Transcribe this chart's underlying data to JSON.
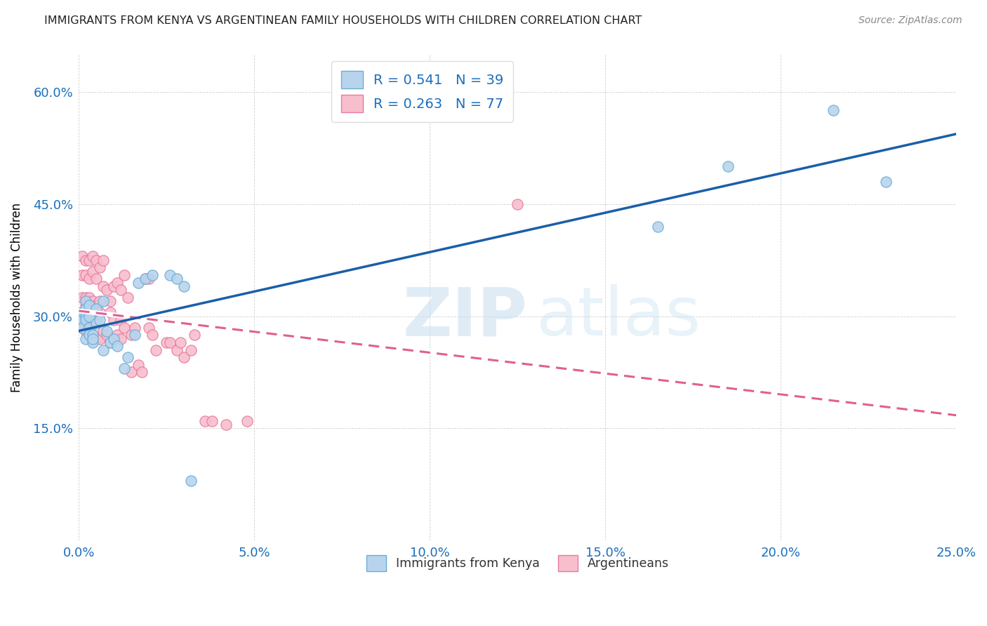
{
  "title": "IMMIGRANTS FROM KENYA VS ARGENTINEAN FAMILY HOUSEHOLDS WITH CHILDREN CORRELATION CHART",
  "source": "Source: ZipAtlas.com",
  "xlim": [
    0.0,
    0.25
  ],
  "ylim": [
    0.0,
    0.65
  ],
  "watermark_zip": "ZIP",
  "watermark_atlas": "atlas",
  "legend_r1": "0.541",
  "legend_n1": "39",
  "legend_r2": "0.263",
  "legend_n2": "77",
  "color_kenya_fill": "#b8d4ed",
  "color_kenya_edge": "#6aaed6",
  "color_argentina_fill": "#f7bfce",
  "color_argentina_edge": "#e87a9f",
  "color_kenya_line": "#1a5fa8",
  "color_argentina_line": "#e06090",
  "ylabel": "Family Households with Children",
  "legend_label1": "Immigrants from Kenya",
  "legend_label2": "Argentineans",
  "kenya_x": [
    0.001,
    0.001,
    0.001,
    0.001,
    0.002,
    0.002,
    0.002,
    0.002,
    0.002,
    0.003,
    0.003,
    0.003,
    0.003,
    0.004,
    0.004,
    0.004,
    0.005,
    0.005,
    0.006,
    0.007,
    0.007,
    0.008,
    0.009,
    0.01,
    0.011,
    0.013,
    0.014,
    0.016,
    0.017,
    0.019,
    0.021,
    0.026,
    0.028,
    0.03,
    0.032,
    0.165,
    0.185,
    0.215,
    0.23
  ],
  "kenya_y": [
    0.305,
    0.3,
    0.295,
    0.285,
    0.32,
    0.31,
    0.3,
    0.295,
    0.27,
    0.315,
    0.3,
    0.285,
    0.275,
    0.275,
    0.265,
    0.27,
    0.31,
    0.29,
    0.295,
    0.32,
    0.255,
    0.28,
    0.265,
    0.27,
    0.26,
    0.23,
    0.245,
    0.275,
    0.345,
    0.35,
    0.355,
    0.355,
    0.35,
    0.34,
    0.08,
    0.42,
    0.5,
    0.575,
    0.48
  ],
  "arg_x": [
    0.001,
    0.001,
    0.001,
    0.001,
    0.001,
    0.001,
    0.002,
    0.002,
    0.002,
    0.002,
    0.002,
    0.002,
    0.002,
    0.002,
    0.003,
    0.003,
    0.003,
    0.003,
    0.003,
    0.003,
    0.003,
    0.003,
    0.004,
    0.004,
    0.004,
    0.004,
    0.004,
    0.004,
    0.005,
    0.005,
    0.005,
    0.005,
    0.005,
    0.006,
    0.006,
    0.006,
    0.006,
    0.007,
    0.007,
    0.007,
    0.008,
    0.008,
    0.009,
    0.009,
    0.009,
    0.01,
    0.01,
    0.011,
    0.011,
    0.012,
    0.012,
    0.012,
    0.013,
    0.013,
    0.014,
    0.015,
    0.015,
    0.016,
    0.017,
    0.018,
    0.019,
    0.02,
    0.02,
    0.021,
    0.022,
    0.025,
    0.026,
    0.028,
    0.029,
    0.03,
    0.032,
    0.033,
    0.036,
    0.038,
    0.042,
    0.048,
    0.125
  ],
  "arg_y": [
    0.38,
    0.355,
    0.325,
    0.305,
    0.295,
    0.285,
    0.375,
    0.355,
    0.325,
    0.315,
    0.305,
    0.3,
    0.295,
    0.28,
    0.375,
    0.35,
    0.325,
    0.315,
    0.305,
    0.295,
    0.285,
    0.275,
    0.38,
    0.36,
    0.32,
    0.305,
    0.295,
    0.275,
    0.375,
    0.35,
    0.315,
    0.295,
    0.27,
    0.365,
    0.32,
    0.305,
    0.27,
    0.375,
    0.34,
    0.28,
    0.335,
    0.275,
    0.32,
    0.305,
    0.265,
    0.34,
    0.295,
    0.345,
    0.275,
    0.335,
    0.295,
    0.27,
    0.355,
    0.285,
    0.325,
    0.275,
    0.225,
    0.285,
    0.235,
    0.225,
    0.35,
    0.35,
    0.285,
    0.275,
    0.255,
    0.265,
    0.265,
    0.255,
    0.265,
    0.245,
    0.255,
    0.275,
    0.16,
    0.16,
    0.155,
    0.16,
    0.45
  ]
}
